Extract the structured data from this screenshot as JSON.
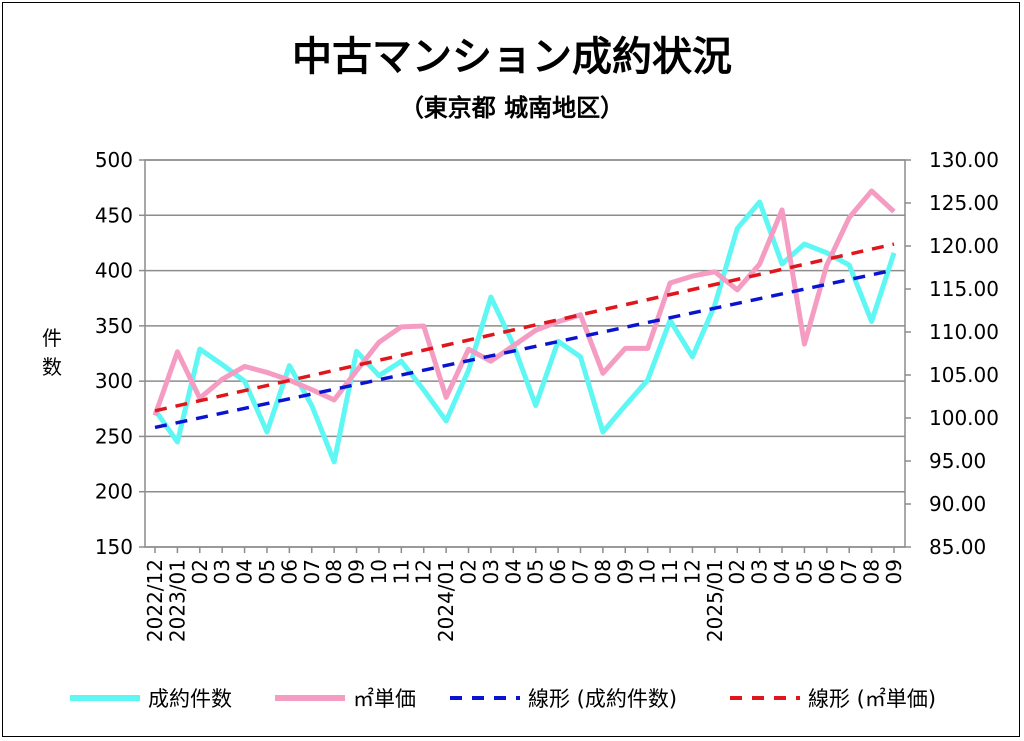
{
  "chart_data": {
    "type": "line",
    "title": "中古マンション成約状況",
    "subtitle": "（東京都 城南地区）",
    "ylabel": "件数",
    "ylabel_chars": [
      "件",
      "数"
    ],
    "ylim": [
      150,
      500
    ],
    "y_ticks": [
      "500",
      "450",
      "400",
      "350",
      "300",
      "250",
      "200",
      "150"
    ],
    "y2lim": [
      85,
      130
    ],
    "y2_ticks": [
      "130.00",
      "125.00",
      "120.00",
      "115.00",
      "110.00",
      "105.00",
      "100.00",
      "95.00",
      "90.00",
      "85.00"
    ],
    "grid": true,
    "legend_position": "bottom",
    "categories": [
      "2022/12",
      "2023/01",
      "02",
      "03",
      "04",
      "05",
      "06",
      "07",
      "08",
      "09",
      "10",
      "11",
      "12",
      "2024/01",
      "02",
      "03",
      "04",
      "05",
      "06",
      "07",
      "08",
      "09",
      "10",
      "11",
      "12",
      "2025/01",
      "02",
      "03",
      "04",
      "05",
      "06",
      "07",
      "08",
      "09"
    ],
    "series": [
      {
        "name": "成約件数",
        "axis": "left",
        "color": "#5ef7f4",
        "style": "solid",
        "values": [
          274,
          245,
          329,
          315,
          300,
          254,
          314,
          278,
          227,
          327,
          305,
          318,
          292,
          264,
          310,
          376,
          333,
          278,
          336,
          322,
          254,
          278,
          301,
          355,
          322,
          369,
          438,
          462,
          406,
          424,
          416,
          405,
          354,
          416
        ]
      },
      {
        "name": "㎡単価",
        "axis": "right",
        "color": "#f59cc3",
        "style": "solid",
        "values": [
          100.3,
          107.7,
          102.3,
          104.5,
          106.0,
          105.3,
          104.4,
          103.3,
          102.1,
          105.5,
          108.8,
          110.6,
          110.7,
          102.4,
          108.0,
          106.6,
          108.4,
          110.2,
          111.2,
          112.0,
          105.2,
          108.1,
          108.1,
          115.7,
          116.5,
          117.0,
          114.9,
          117.9,
          124.2,
          108.6,
          117.8,
          123.3,
          126.4,
          124.0
        ]
      }
    ],
    "trendlines": [
      {
        "name": "線形 (成約件数)",
        "of": 0,
        "axis": "left",
        "color": "#0a14d0",
        "style": "dashed"
      },
      {
        "name": "線形 (㎡単価)",
        "of": 1,
        "axis": "right",
        "color": "#e0161c",
        "style": "dashed"
      }
    ]
  }
}
